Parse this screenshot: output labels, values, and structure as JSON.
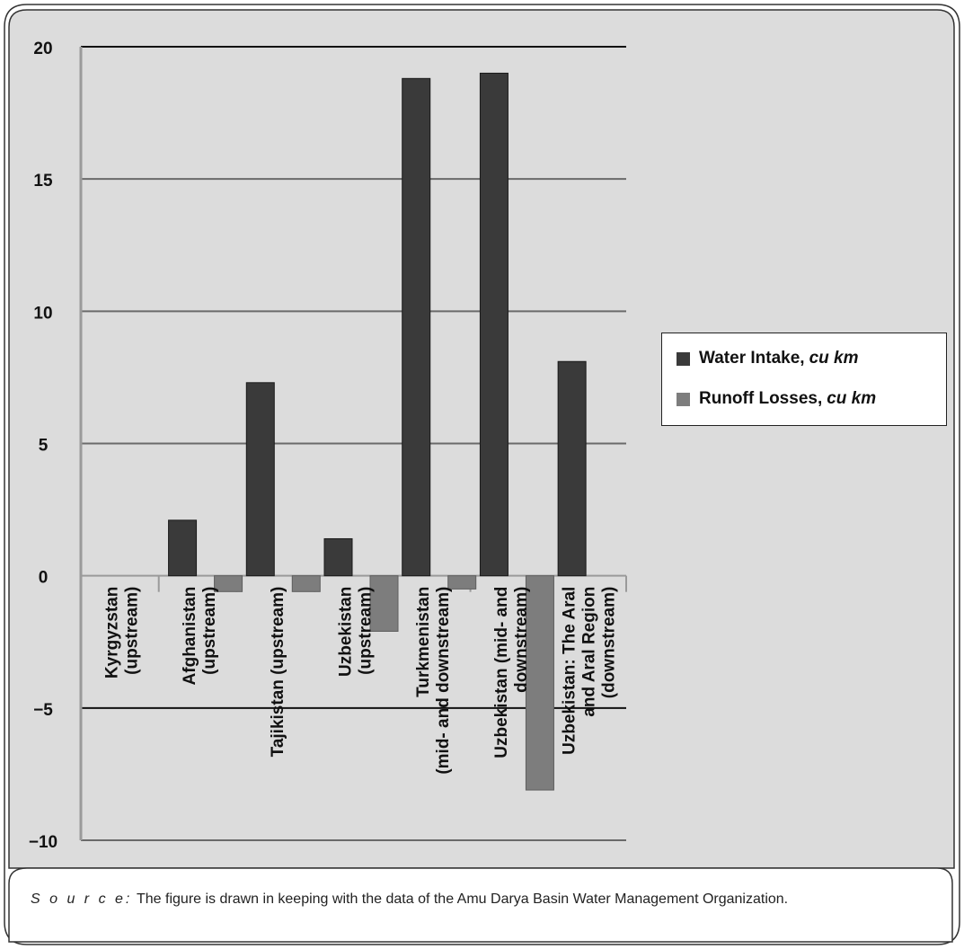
{
  "chart_data": {
    "type": "bar",
    "categories": [
      [
        "Kyrgyzstan",
        "(upstream)"
      ],
      [
        "Afghanistan",
        "(upstream)"
      ],
      [
        "Tajikistan (upstream)"
      ],
      [
        "Uzbekistan",
        "(upstream)"
      ],
      [
        "Turkmenistan",
        "(mid- and downstream)"
      ],
      [
        "Uzbekistan (mid- and",
        "downstream)"
      ],
      [
        "Uzbekistan: The Aral",
        "and Aral Region",
        "(downstream)"
      ]
    ],
    "series": [
      {
        "name": "Water Intake",
        "unit": "cu km",
        "color": "#3a3a3a",
        "values": [
          0,
          2.1,
          7.3,
          1.4,
          18.8,
          19.0,
          8.1
        ]
      },
      {
        "name": "Runoff Losses",
        "unit": "cu km",
        "color": "#7d7d7d",
        "values": [
          0,
          -0.6,
          -0.6,
          -2.1,
          -0.5,
          -8.1,
          0
        ]
      }
    ],
    "yticks": [
      "20",
      "15",
      "10",
      "5",
      "0",
      "−5",
      "−10"
    ],
    "ylim": [
      -10,
      20
    ],
    "grid": true,
    "legend_position": "right"
  },
  "source": {
    "label": "S o u r c e:",
    "text": "The figure is drawn in keeping with the data of the Amu Darya Basin Water Management Organization."
  }
}
